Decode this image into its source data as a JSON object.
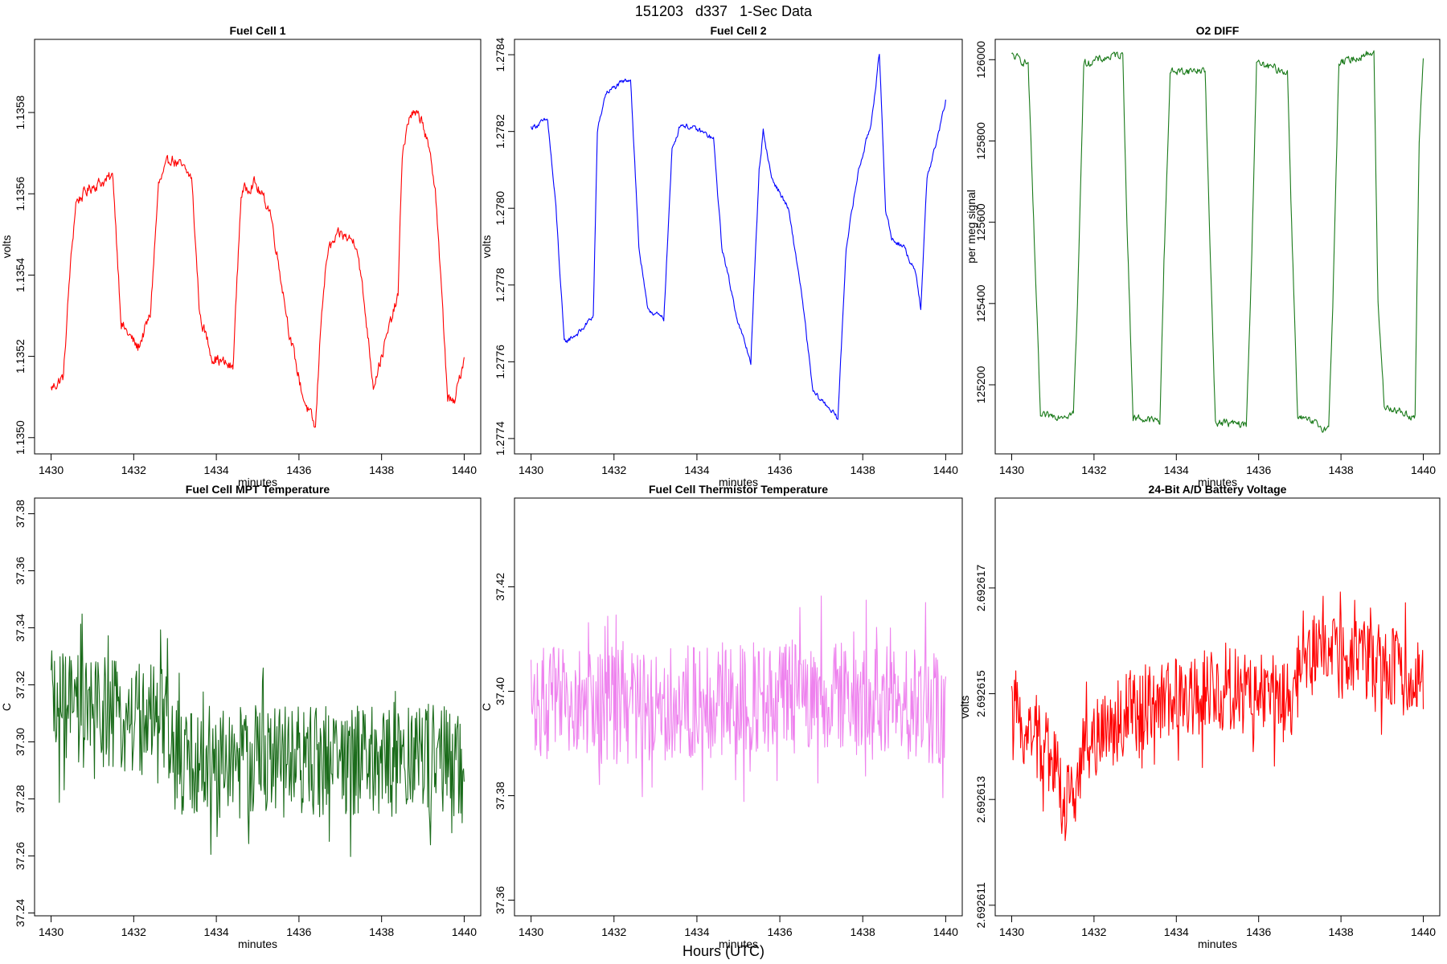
{
  "figure": {
    "title": "151203   d337   1-Sec Data",
    "xlabel": "Hours (UTC)"
  },
  "chart_data": [
    {
      "type": "line",
      "title": "Fuel Cell 1",
      "xlabel": "minutes",
      "ylabel": "volts",
      "color": "#ff0000",
      "xlim": [
        1429.6,
        1440.4
      ],
      "ylim": [
        1.13496,
        1.13598
      ],
      "xticks": [
        1430,
        1432,
        1434,
        1436,
        1438,
        1440
      ],
      "yticks": [
        1.135,
        1.1352,
        1.1354,
        1.1356,
        1.1358
      ],
      "ytick_labels": [
        "1.1350",
        "1.1352",
        "1.1354",
        "1.1356",
        "1.1358"
      ],
      "series": [
        {
          "x": [
            1430.0,
            1430.3,
            1430.45,
            1430.6,
            1431.0,
            1431.5,
            1431.7,
            1432.1,
            1432.4,
            1432.6,
            1432.9,
            1433.4,
            1433.6,
            1433.9,
            1434.4,
            1434.6,
            1434.9,
            1435.3,
            1435.6,
            1435.8,
            1436.1,
            1436.4,
            1436.55,
            1436.7,
            1437.0,
            1437.4,
            1437.65,
            1437.8,
            1438.0,
            1438.4,
            1438.5,
            1438.7,
            1439.0,
            1439.3,
            1439.6,
            1439.75,
            1440.0
          ],
          "y": [
            1.13512,
            1.13515,
            1.1354,
            1.13558,
            1.13562,
            1.13564,
            1.13528,
            1.13522,
            1.1353,
            1.13562,
            1.13569,
            1.13564,
            1.1353,
            1.1352,
            1.13517,
            1.1356,
            1.13563,
            1.13556,
            1.13537,
            1.13524,
            1.1351,
            1.13502,
            1.13532,
            1.13546,
            1.1355,
            1.13548,
            1.13527,
            1.13513,
            1.1352,
            1.13535,
            1.1357,
            1.1358,
            1.13578,
            1.13562,
            1.1351,
            1.13508,
            1.1352
          ],
          "noise": 2.5e-05
        }
      ]
    },
    {
      "type": "line",
      "title": "Fuel Cell 2",
      "xlabel": "minutes",
      "ylabel": "volts",
      "color": "#0000ff",
      "xlim": [
        1429.6,
        1440.4
      ],
      "ylim": [
        1.27736,
        1.27844
      ],
      "xticks": [
        1430,
        1432,
        1434,
        1436,
        1438,
        1440
      ],
      "yticks": [
        1.2774,
        1.2776,
        1.2778,
        1.278,
        1.2782,
        1.2784
      ],
      "ytick_labels": [
        "1.2774",
        "1.2776",
        "1.2778",
        "1.2780",
        "1.2782",
        "1.2784"
      ],
      "series": [
        {
          "x": [
            1430.0,
            1430.4,
            1430.6,
            1430.8,
            1431.2,
            1431.5,
            1431.6,
            1431.8,
            1432.1,
            1432.4,
            1432.6,
            1432.8,
            1433.2,
            1433.4,
            1433.6,
            1434.1,
            1434.4,
            1434.6,
            1435.0,
            1435.3,
            1435.5,
            1435.6,
            1435.8,
            1436.2,
            1436.5,
            1436.8,
            1437.2,
            1437.4,
            1437.6,
            1437.9,
            1438.2,
            1438.4,
            1438.55,
            1438.7,
            1439.0,
            1439.3,
            1439.4,
            1439.55,
            1439.8,
            1440.0
          ],
          "y": [
            1.27821,
            1.27823,
            1.278,
            1.27765,
            1.27768,
            1.27772,
            1.2782,
            1.2783,
            1.27832,
            1.27834,
            1.2779,
            1.27774,
            1.27771,
            1.27815,
            1.27822,
            1.2782,
            1.27818,
            1.2779,
            1.2777,
            1.2776,
            1.2781,
            1.2782,
            1.27808,
            1.278,
            1.2778,
            1.27752,
            1.27748,
            1.27745,
            1.2779,
            1.2781,
            1.27822,
            1.2784,
            1.278,
            1.27792,
            1.2779,
            1.27782,
            1.27774,
            1.27808,
            1.27818,
            1.27828
          ],
          "noise": 1.2e-05
        }
      ]
    },
    {
      "type": "line",
      "title": "O2 DIFF",
      "ylabel": "per meg signal",
      "xlabel": "minutes",
      "color": "#1a7a1a",
      "xlim": [
        1429.6,
        1440.4
      ],
      "ylim": [
        125030,
        126050
      ],
      "xticks": [
        1430,
        1432,
        1434,
        1436,
        1438,
        1440
      ],
      "yticks": [
        125200,
        125400,
        125600,
        125800,
        126000
      ],
      "ytick_labels": [
        "125200",
        "125400",
        "125600",
        "125800",
        "126000"
      ],
      "series": [
        {
          "x": [
            1430.0,
            1430.4,
            1430.55,
            1430.7,
            1431.5,
            1431.6,
            1431.75,
            1432.7,
            1432.8,
            1432.95,
            1433.6,
            1433.7,
            1433.85,
            1434.7,
            1434.8,
            1434.95,
            1435.7,
            1435.8,
            1435.95,
            1436.7,
            1436.8,
            1436.95,
            1437.7,
            1437.8,
            1437.95,
            1438.8,
            1438.9,
            1439.05,
            1439.8,
            1439.9,
            1440.0
          ],
          "y": [
            126010,
            125990,
            125550,
            125120,
            125130,
            125400,
            125990,
            126015,
            125600,
            125120,
            125110,
            125500,
            125970,
            125975,
            125600,
            125110,
            125100,
            125400,
            125990,
            125970,
            125600,
            125120,
            125090,
            125400,
            125990,
            126020,
            125400,
            125150,
            125120,
            125800,
            126000
          ],
          "noise": 16
        }
      ]
    },
    {
      "type": "line",
      "title": "Fuel Cell MPT Temperature",
      "xlabel": "minutes",
      "ylabel": "C",
      "color": "#1a6b1a",
      "xlim": [
        1429.6,
        1440.4
      ],
      "ylim": [
        37.239,
        37.3855
      ],
      "xticks": [
        1430,
        1432,
        1434,
        1436,
        1438,
        1440
      ],
      "yticks": [
        37.24,
        37.26,
        37.28,
        37.3,
        37.32,
        37.34,
        37.36,
        37.38
      ],
      "ytick_labels": [
        "37.24",
        "37.26",
        "37.28",
        "37.30",
        "37.32",
        "37.34",
        "37.36",
        "37.38"
      ],
      "series": [
        {
          "x": [
            1430.0,
            1431.0,
            1432.0,
            1432.8,
            1433.0,
            1434.0,
            1435.0,
            1436.0,
            1437.0,
            1438.0,
            1439.0,
            1440.0
          ],
          "y": [
            37.312,
            37.31,
            37.308,
            37.306,
            37.292,
            37.293,
            37.294,
            37.293,
            37.294,
            37.293,
            37.295,
            37.29
          ],
          "noise": 0.02
        }
      ]
    },
    {
      "type": "line",
      "title": "Fuel Cell Thermistor Temperature",
      "xlabel": "minutes",
      "ylabel": "C",
      "color": "#ee82ee",
      "xlim": [
        1429.6,
        1440.4
      ],
      "ylim": [
        37.357,
        37.437
      ],
      "xticks": [
        1430,
        1432,
        1434,
        1436,
        1438,
        1440
      ],
      "yticks": [
        37.36,
        37.38,
        37.4,
        37.42
      ],
      "ytick_labels": [
        "37.36",
        "37.38",
        "37.40",
        "37.42"
      ],
      "series": [
        {
          "x": [
            1430.0,
            1432.0,
            1434.0,
            1436.0,
            1438.0,
            1440.0
          ],
          "y": [
            37.398,
            37.397,
            37.398,
            37.399,
            37.398,
            37.397
          ],
          "noise": 0.011
        }
      ]
    },
    {
      "type": "line",
      "title": "24-Bit A/D Battery Voltage",
      "xlabel": "minutes",
      "ylabel": "volts",
      "color": "#ff0000",
      "xlim": [
        1429.6,
        1440.4
      ],
      "ylim": [
        2.6926108,
        2.6926187
      ],
      "xticks": [
        1430,
        1432,
        1434,
        1436,
        1438,
        1440
      ],
      "yticks": [
        2.692611,
        2.692613,
        2.692615,
        2.692617
      ],
      "ytick_labels": [
        "2.692611",
        "2.692613",
        "2.692615",
        "2.692617"
      ],
      "series": [
        {
          "x": [
            1430.0,
            1430.5,
            1431.0,
            1431.3,
            1431.6,
            1432.0,
            1433.0,
            1434.0,
            1435.0,
            1436.0,
            1436.9,
            1437.0,
            1438.0,
            1439.0,
            1440.0
          ],
          "y": [
            2.6926145,
            2.6926143,
            2.6926138,
            2.6926128,
            2.6926135,
            2.6926142,
            2.6926147,
            2.6926149,
            2.6926151,
            2.692615,
            2.6926148,
            2.6926158,
            2.6926157,
            2.6926155,
            2.6926153
          ],
          "noise": 8e-07
        }
      ]
    }
  ]
}
